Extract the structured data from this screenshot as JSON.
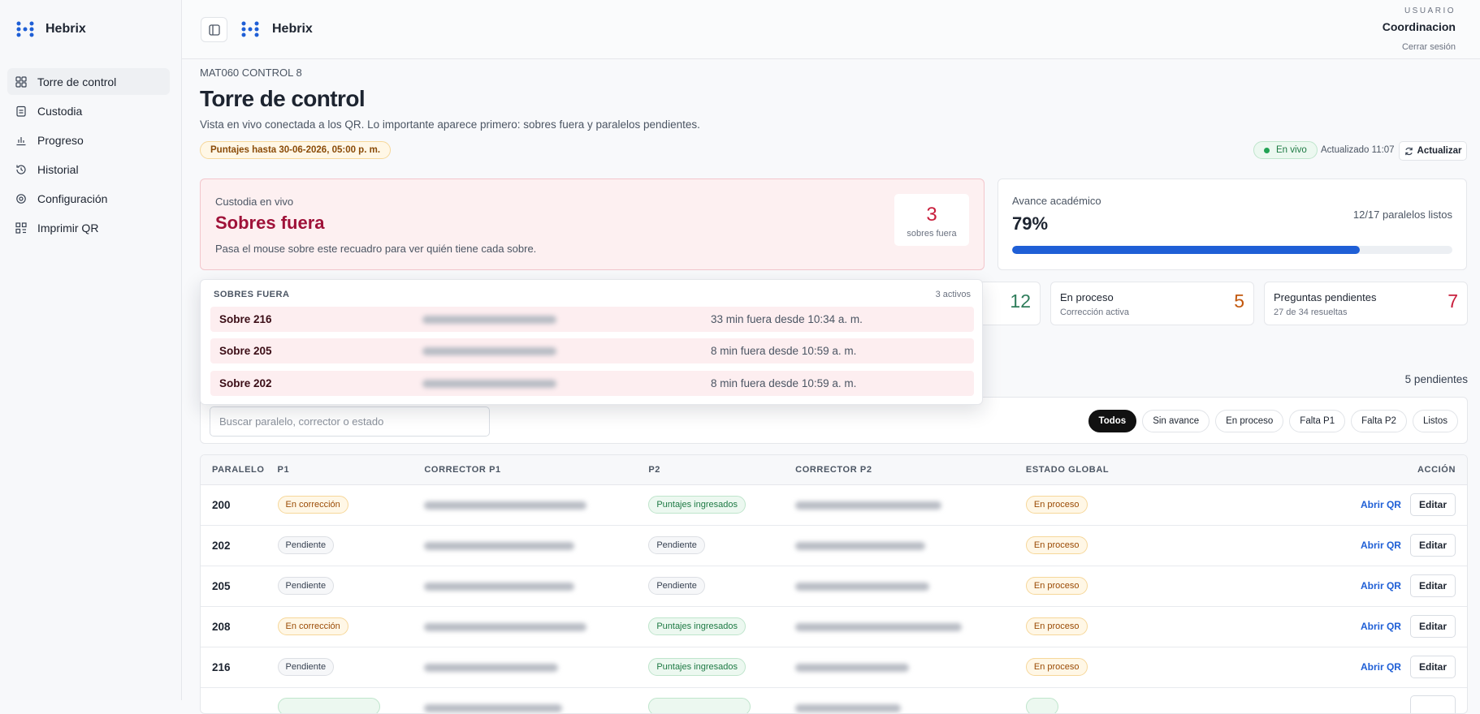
{
  "sidebar": {
    "brand": "Hebrix",
    "nav": [
      "Torre de control",
      "Custodia",
      "Progreso",
      "Historial",
      "Configuración",
      "Imprimir QR"
    ]
  },
  "topbar": {
    "brand": "Hebrix",
    "user_label": "USUARIO",
    "user": "Coordinacion",
    "logout": "Cerrar sesión"
  },
  "page": {
    "eyebrow": "MAT060 CONTROL 8",
    "title": "Torre de control",
    "subtitle": "Vista en vivo conectada a los QR. Lo importante aparece primero: sobres fuera y paralelos pendientes.",
    "deadline": "Puntajes hasta 30-06-2026, 05:00 p. m.",
    "live": "En vivo",
    "updated": "Actualizado 11:07",
    "refresh": "Actualizar"
  },
  "custody": {
    "label": "Custodia en vivo",
    "title": "Sobres fuera",
    "hint": "Pasa el mouse sobre este recuadro para ver quién tiene cada sobre.",
    "count": 3,
    "count_label": "sobres fuera"
  },
  "progress": {
    "label": "Avance académico",
    "percent": {
      "value": 79,
      "label": "79%"
    },
    "ready": "12/17 paralelos listos",
    "color": "#1f5fd6"
  },
  "stats": [
    {
      "value": 12,
      "color": "#2f7d5b"
    },
    {
      "label": "En proceso",
      "sub": "Corrección activa",
      "value": 5,
      "color": "#c2570c"
    },
    {
      "label": "Preguntas pendientes",
      "sub": "27 de 34 resueltas",
      "value": 7,
      "color": "#c81e3c"
    }
  ],
  "popover": {
    "title": "SOBRES FUERA",
    "count": "3 activos",
    "rows": [
      {
        "name": "Sobre 216",
        "time": "33 min fuera desde 10:34 a. m."
      },
      {
        "name": "Sobre 205",
        "time": "8 min fuera desde 10:59 a. m."
      },
      {
        "name": "Sobre 202",
        "time": "8 min fuera desde 10:59 a. m."
      }
    ]
  },
  "list": {
    "pending": "5 pendientes",
    "search_placeholder": "Buscar paralelo, corrector o estado",
    "filters": [
      "Todos",
      "Sin avance",
      "En proceso",
      "Falta P1",
      "Falta P2",
      "Listos"
    ]
  },
  "table": {
    "columns": [
      "PARALELO",
      "P1",
      "CORRECTOR P1",
      "P2",
      "CORRECTOR P2",
      "ESTADO GLOBAL",
      "ACCIÓN"
    ],
    "actions": [
      "Abrir QR",
      "Editar"
    ],
    "rows": [
      {
        "paralelo": "200",
        "p1": {
          "text": "En corrección",
          "tone": "amber"
        },
        "p2": {
          "text": "Puntajes ingresados",
          "tone": "green"
        },
        "estado": {
          "text": "En proceso",
          "tone": "amber"
        }
      },
      {
        "paralelo": "202",
        "p1": {
          "text": "Pendiente",
          "tone": "gray"
        },
        "p2": {
          "text": "Pendiente",
          "tone": "gray"
        },
        "estado": {
          "text": "En proceso",
          "tone": "amber"
        }
      },
      {
        "paralelo": "205",
        "p1": {
          "text": "Pendiente",
          "tone": "gray"
        },
        "p2": {
          "text": "Pendiente",
          "tone": "gray"
        },
        "estado": {
          "text": "En proceso",
          "tone": "amber"
        }
      },
      {
        "paralelo": "208",
        "p1": {
          "text": "En corrección",
          "tone": "amber"
        },
        "p2": {
          "text": "Puntajes ingresados",
          "tone": "green"
        },
        "estado": {
          "text": "En proceso",
          "tone": "amber"
        }
      },
      {
        "paralelo": "216",
        "p1": {
          "text": "Pendiente",
          "tone": "gray"
        },
        "p2": {
          "text": "Puntajes ingresados",
          "tone": "green"
        },
        "estado": {
          "text": "En proceso",
          "tone": "amber"
        }
      }
    ]
  }
}
